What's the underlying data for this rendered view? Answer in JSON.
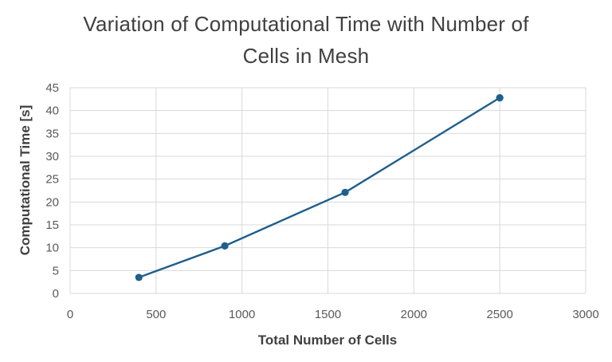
{
  "chart_data": {
    "type": "line",
    "title_line1": "Variation of Computational Time with Number of",
    "title_line2": "Cells in Mesh",
    "xlabel": "Total Number of Cells",
    "ylabel": "Computational Time [s]",
    "xlim": [
      0,
      3000
    ],
    "ylim": [
      0,
      45
    ],
    "x_ticks": [
      0,
      500,
      1000,
      1500,
      2000,
      2500,
      3000
    ],
    "y_ticks": [
      0,
      5,
      10,
      15,
      20,
      25,
      30,
      35,
      40,
      45
    ],
    "grid": true,
    "legend": "none",
    "series": [
      {
        "x": [
          400,
          900,
          1600,
          2500
        ],
        "y": [
          3.5,
          10.4,
          22.1,
          42.8
        ],
        "color": "#1f5f8b",
        "marker": "circle"
      }
    ],
    "colors": {
      "grid": "#d9d9d9",
      "text": "#404040",
      "tick_text": "#595959"
    }
  }
}
